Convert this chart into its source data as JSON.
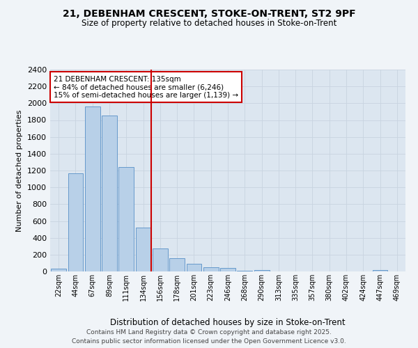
{
  "title_line1": "21, DEBENHAM CRESCENT, STOKE-ON-TRENT, ST2 9PF",
  "title_line2": "Size of property relative to detached houses in Stoke-on-Trent",
  "xlabel": "Distribution of detached houses by size in Stoke-on-Trent",
  "ylabel": "Number of detached properties",
  "categories": [
    "22sqm",
    "44sqm",
    "67sqm",
    "89sqm",
    "111sqm",
    "134sqm",
    "156sqm",
    "178sqm",
    "201sqm",
    "223sqm",
    "246sqm",
    "268sqm",
    "290sqm",
    "313sqm",
    "335sqm",
    "357sqm",
    "380sqm",
    "402sqm",
    "424sqm",
    "447sqm",
    "469sqm"
  ],
  "values": [
    30,
    1170,
    1960,
    1850,
    1240,
    520,
    270,
    155,
    90,
    48,
    40,
    10,
    15,
    0,
    0,
    0,
    0,
    0,
    0,
    18,
    0
  ],
  "bar_color": "#b8d0e8",
  "bar_edge_color": "#6699cc",
  "vline_index": 5,
  "vline_color": "#cc0000",
  "annotation_text": "21 DEBENHAM CRESCENT: 135sqm\n← 84% of detached houses are smaller (6,246)\n15% of semi-detached houses are larger (1,139) →",
  "annotation_box_edgecolor": "#cc0000",
  "ylim": [
    0,
    2400
  ],
  "yticks": [
    0,
    200,
    400,
    600,
    800,
    1000,
    1200,
    1400,
    1600,
    1800,
    2000,
    2200,
    2400
  ],
  "grid_color": "#c8d4e0",
  "plot_bg_color": "#dce6f0",
  "fig_bg_color": "#f0f4f8",
  "footer_line1": "Contains HM Land Registry data © Crown copyright and database right 2025.",
  "footer_line2": "Contains public sector information licensed under the Open Government Licence v3.0."
}
